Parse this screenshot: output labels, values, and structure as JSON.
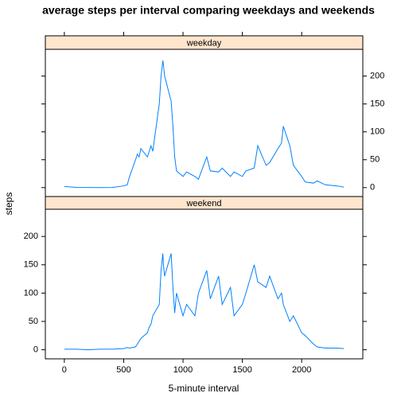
{
  "chart_data": {
    "type": "line",
    "title": "average steps per interval comparing weekdays and weekends",
    "x_label": "5-minute interval",
    "y_label": "steps",
    "x": [
      0,
      100,
      200,
      300,
      400,
      500,
      530,
      550,
      600,
      615,
      630,
      645,
      700,
      715,
      730,
      745,
      800,
      815,
      830,
      835,
      845,
      900,
      915,
      930,
      945,
      1000,
      1030,
      1100,
      1130,
      1200,
      1230,
      1300,
      1330,
      1400,
      1430,
      1500,
      1530,
      1600,
      1630,
      1700,
      1730,
      1800,
      1830,
      1845,
      1900,
      1930,
      2000,
      2030,
      2100,
      2130,
      2200,
      2300,
      2355
    ],
    "series": [
      {
        "name": "weekday",
        "color": "#0080ff",
        "values": [
          2,
          0.5,
          0.2,
          0,
          0.3,
          3,
          5,
          20,
          50,
          60,
          55,
          70,
          55,
          65,
          75,
          65,
          150,
          200,
          228,
          220,
          200,
          155,
          110,
          55,
          30,
          20,
          28,
          20,
          15,
          55,
          30,
          28,
          35,
          20,
          28,
          20,
          30,
          35,
          75,
          40,
          45,
          70,
          80,
          110,
          75,
          40,
          20,
          10,
          8,
          12,
          5,
          3,
          1
        ]
      },
      {
        "name": "weekend",
        "color": "#0080ff",
        "values": [
          1,
          1,
          0,
          1,
          1,
          2,
          4,
          3,
          5,
          10,
          15,
          20,
          30,
          40,
          45,
          60,
          80,
          140,
          170,
          150,
          130,
          170,
          110,
          65,
          100,
          60,
          80,
          60,
          100,
          140,
          90,
          130,
          80,
          110,
          60,
          80,
          100,
          150,
          120,
          110,
          130,
          90,
          100,
          80,
          50,
          60,
          30,
          25,
          10,
          5,
          3,
          3,
          2
        ]
      }
    ],
    "xlim": [
      -160,
      2515
    ],
    "xticks": [
      0,
      500,
      1000,
      1500,
      2000
    ],
    "ylim": [
      -16,
      248
    ],
    "yticks": [
      0,
      50,
      100,
      150,
      200
    ],
    "strip_color": "#ffe5cc"
  }
}
